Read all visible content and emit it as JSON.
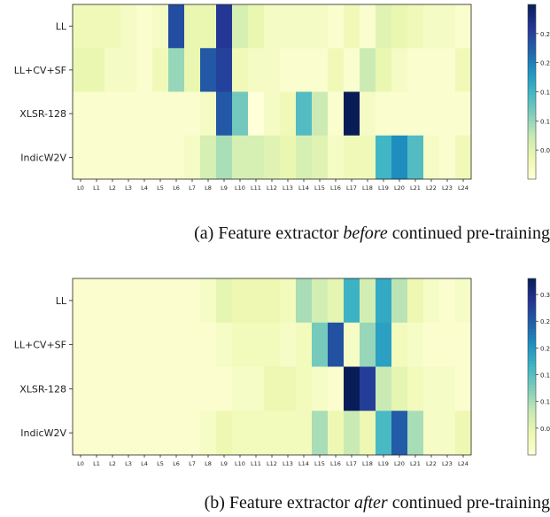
{
  "chart_data": [
    {
      "type": "heatmap",
      "caption": {
        "prefix": "(a) Feature extractor ",
        "emph": "before",
        "suffix": " continued pre-training"
      },
      "rows": [
        "LL",
        "LL+CV+SF",
        "XLSR-128",
        "IndicW2V"
      ],
      "columns": [
        "L0",
        "L1",
        "L2",
        "L3",
        "L4",
        "L5",
        "L6",
        "L7",
        "L8",
        "L9",
        "L10",
        "L11",
        "L12",
        "L13",
        "L14",
        "L15",
        "L16",
        "L17",
        "L18",
        "L19",
        "L20",
        "L21",
        "L22",
        "L23",
        "L24"
      ],
      "values": [
        [
          0.03,
          0.03,
          0.03,
          0.02,
          0.01,
          0.02,
          0.24,
          0.04,
          0.04,
          0.26,
          0.06,
          0.04,
          0.02,
          0.02,
          0.02,
          0.02,
          0.01,
          0.03,
          0.01,
          0.05,
          0.04,
          0.03,
          0.02,
          0.02,
          0.01
        ],
        [
          0.04,
          0.04,
          0.02,
          0.02,
          0.01,
          0.03,
          0.1,
          0.04,
          0.23,
          0.25,
          0.03,
          0.02,
          0.02,
          0.01,
          0.01,
          0.01,
          0.03,
          0.01,
          0.07,
          0.04,
          0.02,
          0.01,
          0.01,
          0.01,
          0.03
        ],
        [
          0.01,
          0.01,
          0.01,
          0.01,
          0.01,
          0.01,
          0.01,
          0.01,
          0.02,
          0.23,
          0.12,
          0.0,
          0.02,
          0.03,
          0.14,
          0.07,
          0.01,
          0.3,
          0.02,
          0.01,
          0.01,
          0.01,
          0.01,
          0.01,
          0.01
        ],
        [
          0.01,
          0.01,
          0.01,
          0.01,
          0.01,
          0.01,
          0.01,
          0.02,
          0.06,
          0.09,
          0.06,
          0.06,
          0.05,
          0.04,
          0.06,
          0.05,
          0.02,
          0.03,
          0.03,
          0.15,
          0.19,
          0.14,
          0.02,
          0.01,
          0.03
        ]
      ],
      "colorbar": {
        "min": 0,
        "max": 0.3,
        "ticks": [
          "0.05",
          "0.10",
          "0.15",
          "0.20",
          "0.25"
        ]
      }
    },
    {
      "type": "heatmap",
      "caption": {
        "prefix": "(b) Feature extractor ",
        "emph": "after",
        "suffix": " continued pre-training"
      },
      "rows": [
        "LL",
        "LL+CV+SF",
        "XLSR-128",
        "IndicW2V"
      ],
      "columns": [
        "L0",
        "L1",
        "L2",
        "L3",
        "L4",
        "L5",
        "L6",
        "L7",
        "L8",
        "L9",
        "L10",
        "L11",
        "L12",
        "L13",
        "L14",
        "L15",
        "L16",
        "L17",
        "L18",
        "L19",
        "L20",
        "L21",
        "L22",
        "L23",
        "L24"
      ],
      "values": [
        [
          0.01,
          0.01,
          0.01,
          0.01,
          0.01,
          0.01,
          0.01,
          0.01,
          0.02,
          0.05,
          0.04,
          0.04,
          0.04,
          0.03,
          0.1,
          0.07,
          0.05,
          0.17,
          0.07,
          0.18,
          0.09,
          0.04,
          0.02,
          0.01,
          0.02
        ],
        [
          0.01,
          0.01,
          0.01,
          0.01,
          0.01,
          0.01,
          0.01,
          0.01,
          0.01,
          0.02,
          0.03,
          0.03,
          0.03,
          0.02,
          0.03,
          0.13,
          0.26,
          0.02,
          0.11,
          0.19,
          0.03,
          0.02,
          0.01,
          0.01,
          0.01
        ],
        [
          0.01,
          0.01,
          0.01,
          0.01,
          0.01,
          0.01,
          0.01,
          0.01,
          0.01,
          0.01,
          0.02,
          0.02,
          0.04,
          0.04,
          0.03,
          0.02,
          0.01,
          0.33,
          0.28,
          0.08,
          0.05,
          0.03,
          0.02,
          0.02,
          0.01
        ],
        [
          0.01,
          0.01,
          0.01,
          0.01,
          0.01,
          0.01,
          0.01,
          0.01,
          0.02,
          0.04,
          0.03,
          0.03,
          0.03,
          0.03,
          0.03,
          0.1,
          0.04,
          0.08,
          0.04,
          0.16,
          0.25,
          0.1,
          0.02,
          0.02,
          0.04
        ]
      ],
      "colorbar": {
        "min": 0,
        "max": 0.33,
        "ticks": [
          "0.05",
          "0.10",
          "0.15",
          "0.20",
          "0.25",
          "0.30"
        ]
      }
    }
  ]
}
